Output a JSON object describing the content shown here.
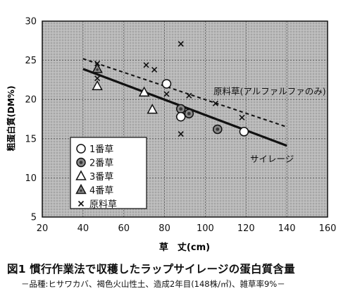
{
  "chart_data": {
    "type": "scatter",
    "xlabel": "草　丈(cm)",
    "ylabel": "粗蛋白質(DM%)",
    "xlim": [
      20,
      160
    ],
    "ylim": [
      5,
      30
    ],
    "xticks": [
      20,
      40,
      60,
      80,
      100,
      120,
      140,
      160
    ],
    "yticks": [
      5,
      10,
      15,
      20,
      25,
      30
    ],
    "grid": true,
    "background": "stippled gray",
    "legend_position": "bottom-left",
    "series": [
      {
        "name": "1番草",
        "marker": "open-circle",
        "x": [
          81,
          88,
          119
        ],
        "y": [
          22.0,
          17.8,
          15.9
        ]
      },
      {
        "name": "2番草",
        "marker": "dotted-circle",
        "x": [
          88,
          92,
          106
        ],
        "y": [
          18.8,
          18.2,
          16.2
        ]
      },
      {
        "name": "3番草",
        "marker": "open-triangle",
        "x": [
          47,
          70,
          74
        ],
        "y": [
          21.7,
          20.9,
          18.7
        ]
      },
      {
        "name": "4番草",
        "marker": "dotted-triangle",
        "x": [
          47
        ],
        "y": [
          23.9
        ]
      },
      {
        "name": "原料草",
        "marker": "x",
        "x": [
          47,
          47,
          71,
          75,
          81,
          88,
          88,
          92,
          105,
          118
        ],
        "y": [
          24.6,
          22.7,
          24.4,
          23.8,
          20.7,
          27.1,
          15.6,
          20.5,
          19.5,
          17.7
        ]
      }
    ],
    "lines": [
      {
        "name": "原料草(アルファルファのみ)",
        "style": "dashed",
        "x": [
          40,
          140
        ],
        "y": [
          25.2,
          16.5
        ]
      },
      {
        "name": "サイレージ",
        "style": "solid",
        "x": [
          40,
          140
        ],
        "y": [
          23.9,
          14.1
        ]
      }
    ],
    "annotations": [
      "原料草(アルファルファのみ)",
      "サイレージ"
    ]
  },
  "caption": {
    "title": "図1 慣行作業法で収穫したラップサイレージの蛋白質含量",
    "subtitle": "－品種:ヒサワカバ、褐色火山性土、造成2年目(148株/㎡)、雑草率9%－"
  }
}
